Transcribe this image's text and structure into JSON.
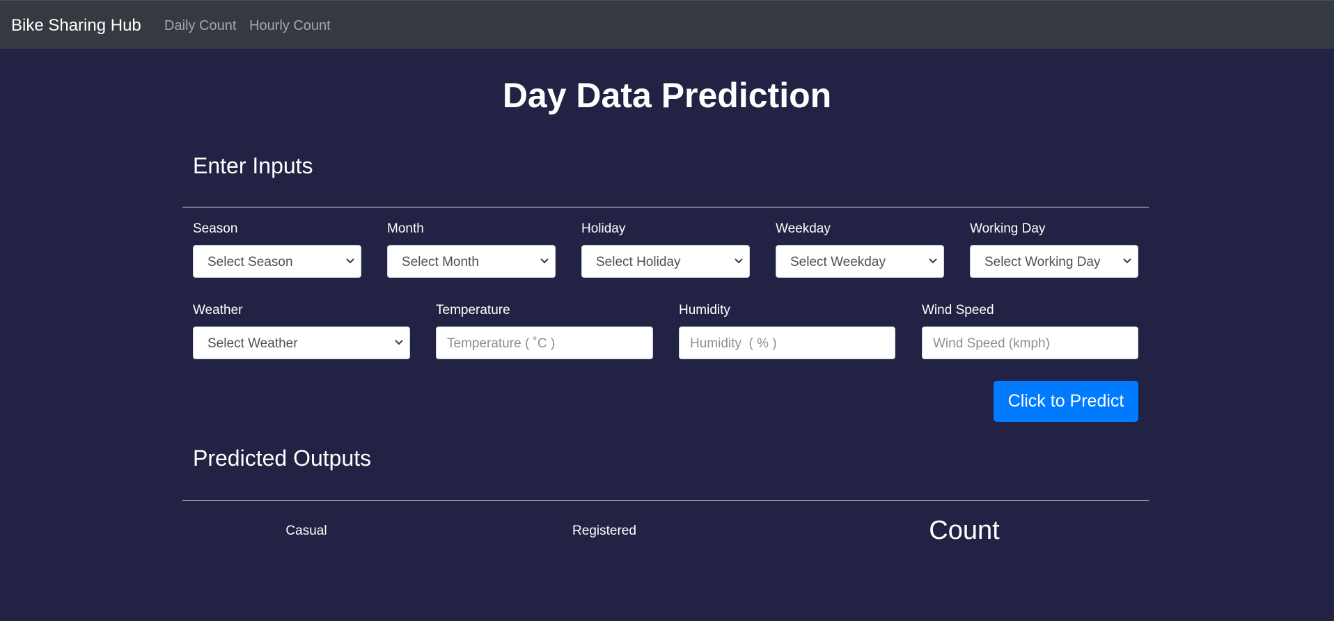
{
  "navbar": {
    "brand": "Bike Sharing Hub",
    "links": [
      "Daily Count",
      "Hourly Count"
    ]
  },
  "page": {
    "title": "Day Data Prediction"
  },
  "inputs_section": {
    "title": "Enter Inputs",
    "row1": [
      {
        "label": "Season",
        "placeholder": "Select Season",
        "icon": "chevron-down-icon"
      },
      {
        "label": "Month",
        "placeholder": "Select Month",
        "icon": "chevron-down-icon"
      },
      {
        "label": "Holiday",
        "placeholder": "Select Holiday",
        "icon": "chevron-down-icon"
      },
      {
        "label": "Weekday",
        "placeholder": "Select Weekday",
        "icon": "chevron-down-icon"
      },
      {
        "label": "Working Day",
        "placeholder": "Select Working Day",
        "icon": "chevron-down-icon"
      }
    ],
    "row2": {
      "weather": {
        "label": "Weather",
        "placeholder": "Select Weather",
        "icon": "chevron-down-icon"
      },
      "temperature": {
        "label": "Temperature",
        "placeholder": "Temperature ( ˚C )"
      },
      "humidity": {
        "label": "Humidity",
        "placeholder": "Humidity  ( % )"
      },
      "wind_speed": {
        "label": "Wind Speed",
        "placeholder": "Wind Speed (kmph)"
      }
    },
    "predict_button": "Click to Predict"
  },
  "outputs_section": {
    "title": "Predicted Outputs",
    "casual_label": "Casual",
    "registered_label": "Registered",
    "count_label": "Count"
  },
  "colors": {
    "background": "#222244",
    "navbar": "#343a40",
    "primary_button": "#007bff"
  }
}
